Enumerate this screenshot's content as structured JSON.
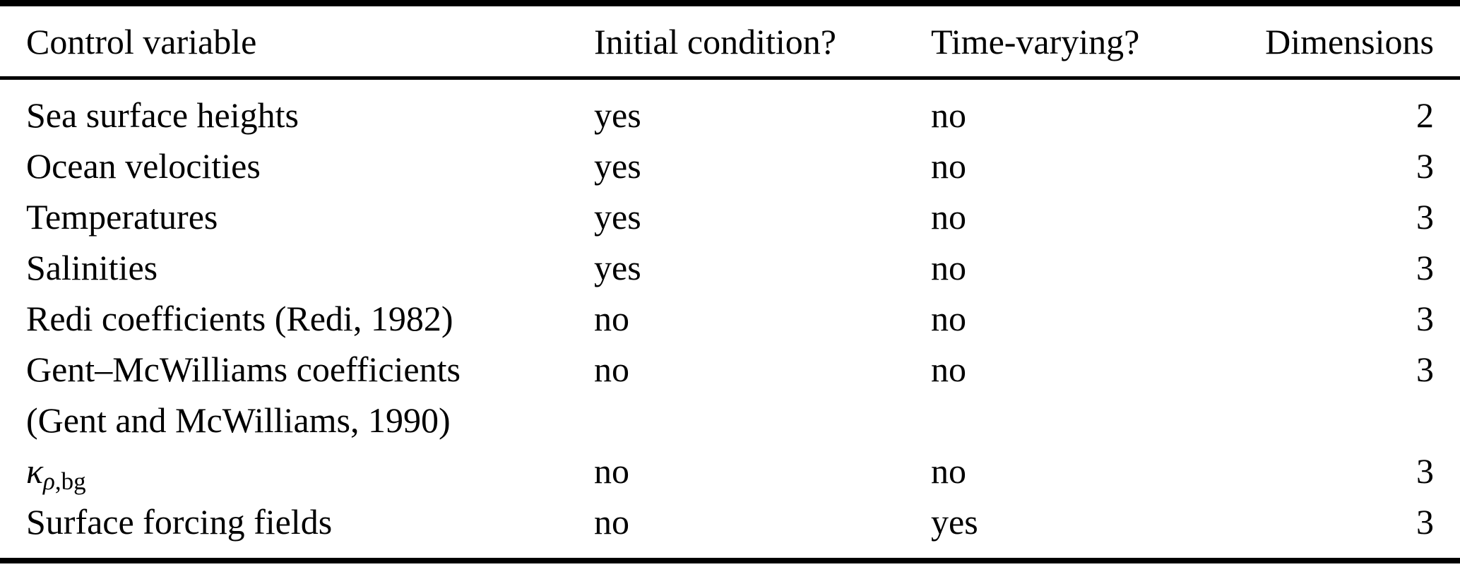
{
  "table": {
    "columns": [
      "Control variable",
      "Initial condition?",
      "Time-varying?",
      "Dimensions"
    ],
    "rows": [
      {
        "variable": "Sea surface heights",
        "initial_condition": "yes",
        "time_varying": "no",
        "dimensions": "2"
      },
      {
        "variable": "Ocean velocities",
        "initial_condition": "yes",
        "time_varying": "no",
        "dimensions": "3"
      },
      {
        "variable": "Temperatures",
        "initial_condition": "yes",
        "time_varying": "no",
        "dimensions": "3"
      },
      {
        "variable": "Salinities",
        "initial_condition": "yes",
        "time_varying": "no",
        "dimensions": "3"
      },
      {
        "variable": "Redi coefficients (Redi, 1982)",
        "initial_condition": "no",
        "time_varying": "no",
        "dimensions": "3"
      },
      {
        "variable": "Gent–McWilliams coefficients",
        "variable_line2": "(Gent and McWilliams, 1990)",
        "initial_condition": "no",
        "time_varying": "no",
        "dimensions": "3"
      },
      {
        "variable": "κ",
        "variable_sub_italic": "ρ",
        "variable_sub_roman": ",bg",
        "initial_condition": "no",
        "time_varying": "no",
        "dimensions": "3"
      },
      {
        "variable": "Surface forcing fields",
        "initial_condition": "no",
        "time_varying": "yes",
        "dimensions": "3"
      }
    ],
    "colors": {
      "text": "#000000",
      "background": "#ffffff",
      "rule": "#000000"
    }
  }
}
